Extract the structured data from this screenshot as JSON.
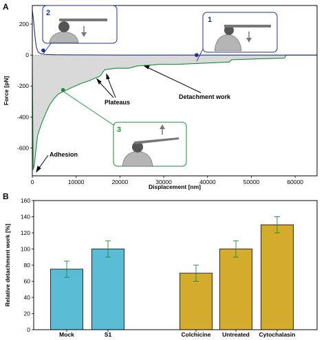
{
  "chart_data": [
    {
      "panel_label": "A",
      "type": "line",
      "xlabel": "Displacement [nm]",
      "ylabel": "Force [pN]",
      "xlim": [
        0,
        65000
      ],
      "ylim": [
        -780,
        320
      ],
      "x_ticks": [
        0,
        10000,
        20000,
        30000,
        40000,
        50000,
        60000
      ],
      "y_ticks": [
        -600,
        -400,
        -200,
        0,
        200
      ],
      "grid": false,
      "colors": {
        "approach": "#1f2f8c",
        "retract": "#1a8a3a",
        "work_fill": "#d9d9d9"
      },
      "series": [
        {
          "role": "approach",
          "x": [
            0,
            300,
            600,
            900,
            1300,
            2000,
            3000,
            5000,
            10000,
            20000,
            37000,
            50000,
            65000
          ],
          "y": [
            290,
            220,
            120,
            55,
            20,
            8,
            4,
            2,
            1,
            0,
            0,
            0,
            0
          ]
        },
        {
          "role": "retract",
          "x": [
            0,
            200,
            500,
            800,
            1200,
            2000,
            3000,
            4000,
            5000,
            6000,
            7500,
            9000,
            11000,
            13000,
            15500,
            16500,
            19000,
            22000,
            24000,
            27000,
            29000,
            33000,
            37000,
            41000,
            45000,
            45500,
            51000,
            57500,
            58000,
            65000
          ],
          "y": [
            -100,
            -740,
            -700,
            -620,
            -520,
            -450,
            -380,
            -320,
            -280,
            -250,
            -230,
            -210,
            -185,
            -165,
            -135,
            -95,
            -85,
            -85,
            -70,
            -65,
            -60,
            -60,
            -55,
            -50,
            -45,
            -30,
            -25,
            -20,
            0,
            0
          ]
        }
      ],
      "annotations": [
        {
          "text": "Adhesion",
          "x": 700,
          "y": -770
        },
        {
          "text": "Plateaus",
          "x": 15000,
          "y": -100
        },
        {
          "text": "Detachment work",
          "x": 25000,
          "y": -30
        }
      ],
      "markers": [
        {
          "label": "1",
          "x": 37500,
          "y": 0
        },
        {
          "label": "2",
          "x": 2500,
          "y": 30
        },
        {
          "label": "3",
          "x": 7000,
          "y": -225
        }
      ]
    },
    {
      "panel_label": "B",
      "type": "bar",
      "ylabel": "Relative detachment work [%]",
      "ylim": [
        0,
        160
      ],
      "y_ticks": [
        0,
        20,
        40,
        60,
        80,
        100,
        120,
        140,
        160
      ],
      "grid": false,
      "colors": {
        "group1": "#5bbcd6",
        "group2": "#d4ab2d",
        "error": "#1a8a3a"
      },
      "categories": [
        "Mock",
        "S1",
        "Colchicine",
        "Untreated",
        "Cytochalasin"
      ],
      "values": [
        75,
        100,
        70,
        100,
        130
      ],
      "errors": [
        10,
        10,
        10,
        10,
        10
      ]
    }
  ]
}
